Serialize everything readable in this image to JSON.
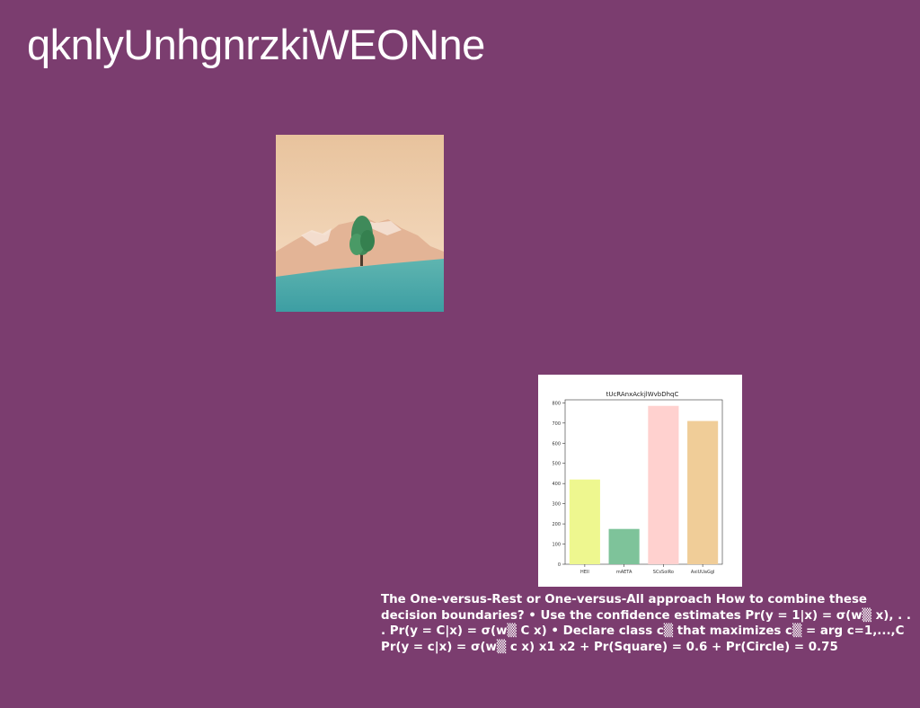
{
  "slide": {
    "title": "qknlyUnhgnrzkiWEONne",
    "caption": "The One-versus-Rest or One-versus-All approach How to combine these decision boundaries? • Use the confidence estimates Pr(y = 1|x) = σ(w▒ x), . . . Pr(y = C|x) = σ(w▒ C x) • Declare class c▒ that maximizes c▒ = arg c=1,...,C Pr(y = c|x) = σ(w▒ c x) x1 x2 + Pr(Square) = 0.6 + Pr(Circle) = 0.75"
  },
  "colors": {
    "background": "#7b3d6f",
    "text": "#ffffff"
  },
  "chart_data": {
    "type": "bar",
    "title": "tUcRAnxAckjlWvbDhqC",
    "categories": [
      "HEII",
      "mAETA",
      "SCsSoiRo",
      "AxiUUaGgl"
    ],
    "values": [
      420,
      175,
      785,
      710
    ],
    "colors": [
      "#eef78f",
      "#7ec39a",
      "#ffd1cf",
      "#f0cd98"
    ],
    "yticks": [
      0,
      100,
      200,
      300,
      400,
      500,
      600,
      700,
      800
    ],
    "ylim": [
      0,
      815
    ],
    "xlabel": "",
    "ylabel": "",
    "grid": false
  }
}
